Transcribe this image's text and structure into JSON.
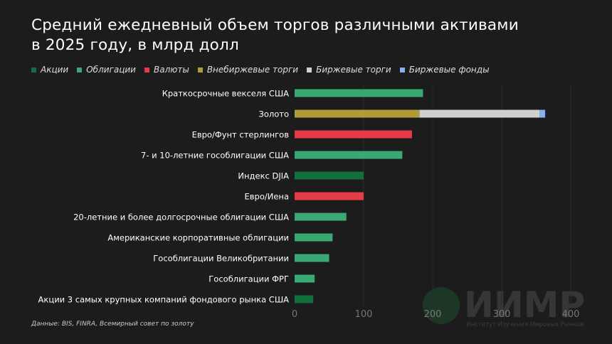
{
  "chart_data": {
    "type": "bar",
    "orientation": "horizontal",
    "stacked": true,
    "title": "Средний ежедневный объем торгов различными активами в 2025 году, в млрд долл",
    "title_lines": [
      "Средний ежедневный объем торгов различными активами",
      "в 2025 году, в млрд долл"
    ],
    "categories": [
      "Краткосрочные векселя США",
      "Золото",
      "Евро/Фунт стерлингов",
      "7- и 10-летние гособлигации США",
      "Индекс DJIA",
      "Евро/Иена",
      "20-летние и более долгосрочные облигации США",
      "Американские корпоративные облигации",
      "Гособлигации Великобритании",
      "Гособлигации ФРГ",
      "Акции 3 самых крупных компаний фондового рынка США"
    ],
    "series": [
      {
        "name": "Акции",
        "color": "#12703f",
        "values": [
          0,
          0,
          0,
          0,
          100,
          0,
          0,
          0,
          0,
          0,
          27
        ]
      },
      {
        "name": "Облигации",
        "color": "#3aa872",
        "values": [
          186,
          0,
          0,
          156,
          0,
          0,
          75,
          55,
          50,
          29,
          0
        ]
      },
      {
        "name": "Валюты",
        "color": "#e63b47",
        "values": [
          0,
          0,
          170,
          0,
          0,
          100,
          0,
          0,
          0,
          0,
          0
        ]
      },
      {
        "name": "Внебиржевые торги",
        "color": "#b09a3a",
        "values": [
          0,
          181,
          0,
          0,
          0,
          0,
          0,
          0,
          0,
          0,
          0
        ]
      },
      {
        "name": "Биржевые торги",
        "color": "#d0d0d0",
        "values": [
          0,
          174,
          0,
          0,
          0,
          0,
          0,
          0,
          0,
          0,
          0
        ]
      },
      {
        "name": "Биржевые фонды",
        "color": "#7fb2f0",
        "values": [
          0,
          8,
          0,
          0,
          0,
          0,
          0,
          0,
          0,
          0,
          0
        ]
      }
    ],
    "xlim": [
      0,
      400
    ],
    "xticks": [
      "0",
      "100",
      "200",
      "300",
      "400"
    ],
    "grid": true,
    "legend_position": "top"
  },
  "source": "Данные: BIS, FINRA, Всемирный совет по золоту",
  "watermark": {
    "name": "ИИМР",
    "subtitle": "Институт Изучения Мировых Рынков"
  }
}
